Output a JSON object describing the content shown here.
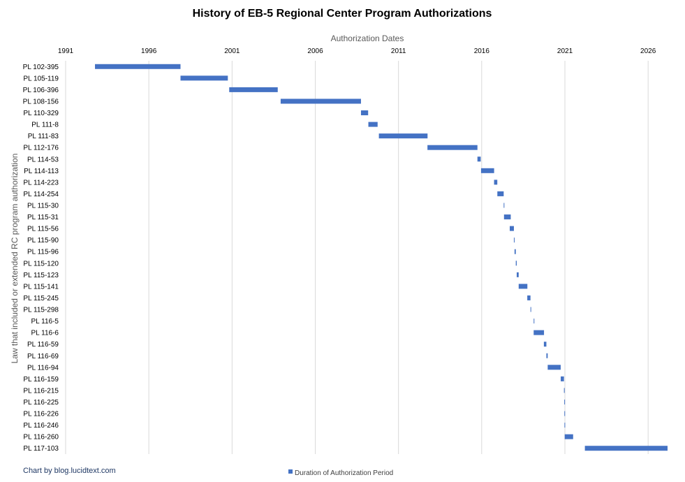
{
  "chart_data": {
    "type": "bar",
    "orientation": "horizontal-range",
    "title": "History of EB-5 Regional Center Program Authorizations",
    "xlabel": "Authorization Dates",
    "ylabel": "Law that included or extended RC program authorization",
    "x_axis_position": "top",
    "xlim": [
      "1991-01-01",
      "2027-01-01"
    ],
    "x_ticks": [
      "1991",
      "1996",
      "2001",
      "2006",
      "2011",
      "2016",
      "2021",
      "2026"
    ],
    "grid": true,
    "legend": {
      "position": "bottom",
      "entries": [
        "Duration of Authorization Period"
      ]
    },
    "series_color": "#4472c4",
    "categories": [
      "PL 102-395",
      "PL 105-119",
      "PL 106-396",
      "PL 108-156",
      "PL 110-329",
      "PL 111-8",
      "PL 111-83",
      "PL 112-176",
      "PL 114-53",
      "PL 114-113",
      "PL 114-223",
      "PL 114-254",
      "PL 115-30",
      "PL 115-31",
      "PL 115-56",
      "PL 115-90",
      "PL 115-96",
      "PL 115-120",
      "PL 115-123",
      "PL 115-141",
      "PL 115-245",
      "PL 115-298",
      "PL 116-5",
      "PL 116-6",
      "PL 116-59",
      "PL 116-69",
      "PL 116-94",
      "PL 116-159",
      "PL 116-215",
      "PL 116-225",
      "PL 116-226",
      "PL 116-246",
      "PL 116-260",
      "PL 117-103"
    ],
    "series": [
      {
        "name": "Duration of Authorization Period",
        "start": [
          "1992-10-06",
          "1997-11-26",
          "2000-10-30",
          "2003-12-03",
          "2008-09-30",
          "2009-03-11",
          "2009-10-28",
          "2012-09-28",
          "2015-09-30",
          "2015-12-18",
          "2016-09-29",
          "2016-12-10",
          "2017-04-28",
          "2017-05-05",
          "2017-09-08",
          "2017-12-08",
          "2017-12-22",
          "2018-01-19",
          "2018-02-08",
          "2018-03-23",
          "2018-09-28",
          "2018-12-07",
          "2019-02-15",
          "2019-02-15",
          "2019-09-27",
          "2019-11-21",
          "2019-12-20",
          "2020-10-01",
          "2020-12-11",
          "2020-12-18",
          "2020-12-20",
          "2020-12-22",
          "2020-12-27",
          "2022-03-15"
        ],
        "end": [
          "1997-11-26",
          "2000-09-30",
          "2003-09-30",
          "2008-09-30",
          "2009-03-06",
          "2009-09-30",
          "2012-09-30",
          "2015-09-30",
          "2015-12-11",
          "2016-09-30",
          "2016-12-09",
          "2017-04-28",
          "2017-05-05",
          "2017-09-30",
          "2017-12-08",
          "2017-12-22",
          "2018-01-19",
          "2018-02-08",
          "2018-03-23",
          "2018-09-30",
          "2018-12-07",
          "2018-12-21",
          "2019-02-15",
          "2019-09-30",
          "2019-11-21",
          "2019-12-20",
          "2020-09-30",
          "2020-12-11",
          "2020-12-18",
          "2020-12-20",
          "2020-12-21",
          "2020-12-22",
          "2021-06-30",
          "2027-09-30"
        ]
      }
    ]
  },
  "footer": {
    "credit": "Chart by blog.lucidtext.com"
  }
}
